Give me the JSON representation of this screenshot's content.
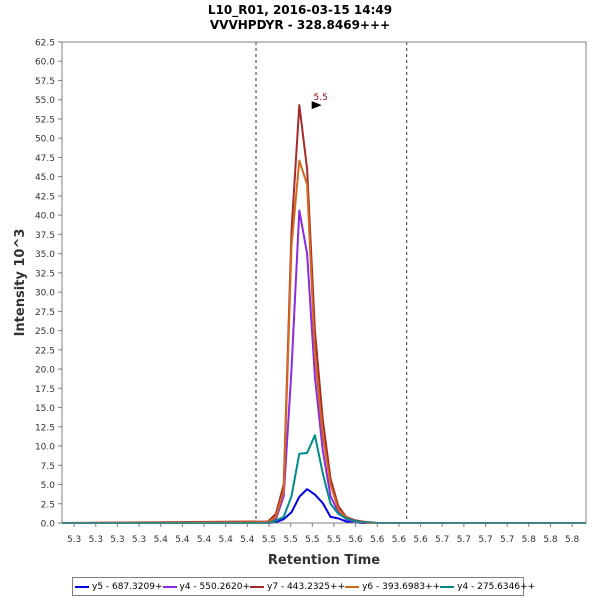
{
  "chart_data": {
    "type": "line",
    "title": "L10_R01, 2016-03-15 14:49",
    "subtitle": "VVVHPDYR - 328.8469+++",
    "xlabel": "Retention Time",
    "ylabel": "Intensity 10^3",
    "xlim": [
      5.236,
      5.841
    ],
    "ylim": [
      0,
      62.5
    ],
    "y_ticks": [
      0.0,
      2.5,
      5.0,
      7.5,
      10.0,
      12.5,
      15.0,
      17.5,
      20.0,
      22.5,
      25.0,
      27.5,
      30.0,
      32.5,
      35.0,
      37.5,
      40.0,
      42.5,
      45.0,
      47.5,
      50.0,
      52.5,
      55.0,
      57.5,
      60.0,
      62.5
    ],
    "x_ticks": [
      {
        "value": 5.25,
        "label": "5.3"
      },
      {
        "value": 5.275,
        "label": "5.3"
      },
      {
        "value": 5.3,
        "label": "5.3"
      },
      {
        "value": 5.325,
        "label": "5.3"
      },
      {
        "value": 5.35,
        "label": "5.4"
      },
      {
        "value": 5.375,
        "label": "5.4"
      },
      {
        "value": 5.4,
        "label": "5.4"
      },
      {
        "value": 5.425,
        "label": "5.4"
      },
      {
        "value": 5.45,
        "label": "5.4"
      },
      {
        "value": 5.475,
        "label": "5.5"
      },
      {
        "value": 5.5,
        "label": "5.5"
      },
      {
        "value": 5.525,
        "label": "5.5"
      },
      {
        "value": 5.55,
        "label": "5.5"
      },
      {
        "value": 5.575,
        "label": "5.6"
      },
      {
        "value": 5.6,
        "label": "5.6"
      },
      {
        "value": 5.625,
        "label": "5.6"
      },
      {
        "value": 5.65,
        "label": "5.6"
      },
      {
        "value": 5.675,
        "label": "5.7"
      },
      {
        "value": 5.7,
        "label": "5.7"
      },
      {
        "value": 5.725,
        "label": "5.7"
      },
      {
        "value": 5.75,
        "label": "5.7"
      },
      {
        "value": 5.775,
        "label": "5.8"
      },
      {
        "value": 5.8,
        "label": "5.8"
      },
      {
        "value": 5.825,
        "label": "5.8"
      }
    ],
    "grid": false,
    "legend_placement": "bottom",
    "integration_bounds": [
      5.46,
      5.634
    ],
    "peak_annotation": {
      "label": "5.5",
      "x": 5.537,
      "y": 54.3,
      "color": "#8b0000"
    },
    "x": [
      5.236,
      5.474,
      5.483,
      5.492,
      5.501,
      5.51,
      5.519,
      5.528,
      5.537,
      5.546,
      5.555,
      5.564,
      5.573,
      5.582,
      5.591,
      5.6,
      5.609,
      5.618,
      5.627,
      5.636,
      5.645,
      5.654,
      5.663,
      5.672,
      5.681,
      5.841
    ],
    "series": [
      {
        "name": "y5 - 687.3209+",
        "color": "#0000e6",
        "values": [
          0,
          0,
          0.1,
          0.5,
          1.4,
          3.4,
          4.4,
          3.7,
          2.6,
          0.8,
          0.6,
          0.2,
          0.1,
          0,
          0,
          0,
          0,
          0,
          0,
          0,
          0,
          0,
          0,
          0,
          0,
          0
        ]
      },
      {
        "name": "y4 - 550.2620+",
        "color": "#8a2be2",
        "values": [
          0,
          0,
          0.5,
          3.5,
          20.0,
          40.6,
          35.0,
          19.0,
          9.5,
          3.5,
          1.4,
          0.5,
          0.2,
          0.1,
          0,
          0,
          0,
          0,
          0,
          0,
          0,
          0,
          0,
          0,
          0,
          0
        ]
      },
      {
        "name": "y7 - 443.2325++",
        "color": "#a52a2a",
        "values": [
          0,
          0.2,
          1.2,
          5.0,
          38.0,
          54.3,
          46.0,
          25.0,
          13.5,
          5.8,
          2.2,
          0.8,
          0.4,
          0.2,
          0.1,
          0,
          0,
          0,
          0,
          0,
          0,
          0,
          0,
          0,
          0,
          0
        ]
      },
      {
        "name": "y6 - 393.6983++",
        "color": "#d2691e",
        "values": [
          0,
          0.1,
          0.8,
          4.2,
          36.0,
          47.1,
          44.0,
          22.0,
          11.5,
          5.0,
          1.8,
          0.7,
          0.3,
          0.1,
          0,
          0,
          0,
          0,
          0,
          0,
          0,
          0,
          0,
          0,
          0,
          0
        ]
      },
      {
        "name": "y4 - 275.6346++",
        "color": "#008b8b",
        "values": [
          0,
          0,
          0.3,
          0.8,
          3.5,
          9.0,
          9.1,
          11.4,
          6.5,
          2.5,
          1.2,
          0.6,
          0.3,
          0.1,
          0.1,
          0,
          0,
          0,
          0,
          0,
          0,
          0,
          0,
          0,
          0,
          0
        ]
      }
    ]
  }
}
